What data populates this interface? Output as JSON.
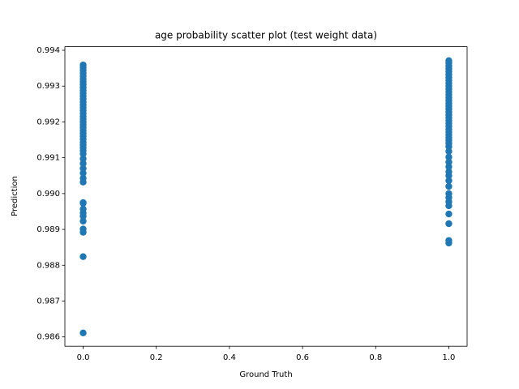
{
  "chart_data": {
    "type": "scatter",
    "title": "age probability scatter plot (test weight data)",
    "x_label": "Ground Truth",
    "y_label": "Prediction",
    "color": "#1f77b4",
    "xlim": [
      -0.05,
      1.05
    ],
    "ylim": [
      0.98574,
      0.9941
    ],
    "xticks": [
      {
        "value": 0,
        "label": "0.0"
      },
      0.2,
      0.4,
      0.6,
      0.8,
      {
        "value": 1,
        "label": "1.0"
      }
    ],
    "yticks": [
      0.986,
      0.987,
      0.988,
      0.989,
      {
        "value": 0.99,
        "label": "0.990"
      },
      0.991,
      0.992,
      0.993,
      0.994
    ],
    "x": [
      0,
      0,
      0,
      0,
      0,
      0,
      0,
      0,
      0,
      0,
      0,
      0,
      0,
      0,
      0,
      0,
      0,
      0,
      0,
      0,
      0,
      0,
      0,
      0,
      0,
      0,
      0,
      0,
      0,
      0,
      0,
      0,
      0,
      0,
      0,
      0,
      0,
      0,
      0,
      0,
      0,
      0,
      0,
      0,
      0,
      0,
      0,
      0,
      1,
      1,
      1,
      1,
      1,
      1,
      1,
      1,
      1,
      1,
      1,
      1,
      1,
      1,
      1,
      1,
      1,
      1,
      1,
      1,
      1,
      1,
      1,
      1,
      1,
      1,
      1,
      1,
      1,
      1,
      1,
      1,
      1,
      1,
      1,
      1,
      1,
      1,
      1,
      1,
      1,
      1,
      1,
      1,
      1,
      1,
      1
    ],
    "y": [
      0.98611,
      0.98824,
      0.98892,
      0.98901,
      0.98923,
      0.98937,
      0.98946,
      0.98957,
      0.98973,
      0.98975,
      0.99032,
      0.99043,
      0.99057,
      0.9907,
      0.99084,
      0.99097,
      0.99111,
      0.9912,
      0.99128,
      0.99136,
      0.99144,
      0.99152,
      0.9916,
      0.99168,
      0.99176,
      0.99184,
      0.99192,
      0.992,
      0.99208,
      0.99216,
      0.99224,
      0.99232,
      0.9924,
      0.99248,
      0.99256,
      0.99264,
      0.99272,
      0.9928,
      0.99288,
      0.99296,
      0.99304,
      0.99312,
      0.9932,
      0.99328,
      0.99336,
      0.99344,
      0.99352,
      0.99359,
      0.98862,
      0.98869,
      0.98916,
      0.98943,
      0.98966,
      0.98977,
      0.98989,
      0.99,
      0.9902,
      0.99036,
      0.9905,
      0.99061,
      0.99075,
      0.99088,
      0.99102,
      0.99118,
      0.99131,
      0.9914,
      0.99148,
      0.99156,
      0.99164,
      0.99172,
      0.9918,
      0.99188,
      0.99196,
      0.99204,
      0.99212,
      0.9922,
      0.99228,
      0.99236,
      0.99244,
      0.99252,
      0.9926,
      0.99268,
      0.99276,
      0.99284,
      0.99292,
      0.993,
      0.99308,
      0.99316,
      0.99324,
      0.99332,
      0.9934,
      0.99348,
      0.99356,
      0.99364,
      0.99371
    ]
  }
}
